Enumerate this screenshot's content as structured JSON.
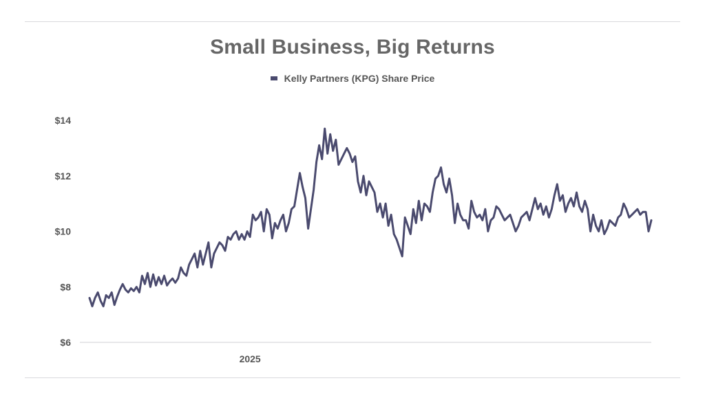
{
  "chart_data": {
    "type": "line",
    "title": "Small Business, Big Returns",
    "legend": {
      "position": "top-center",
      "entries": [
        "Kelly Partners (KPG) Share Price"
      ]
    },
    "xlabel": "",
    "ylabel": "",
    "ylim": [
      6,
      14
    ],
    "y_ticks": [
      14,
      12,
      10,
      8,
      6
    ],
    "y_tick_labels": [
      "$14",
      "$12",
      "$10",
      "$8",
      "$6"
    ],
    "x_tick_labels": [
      {
        "label": "2025",
        "index": 58
      }
    ],
    "grid": "baseline only",
    "series": [
      {
        "name": "Kelly Partners (KPG) Share Price",
        "color": "#4a4a6e",
        "values": [
          7.6,
          7.3,
          7.6,
          7.8,
          7.5,
          7.3,
          7.7,
          7.6,
          7.8,
          7.35,
          7.65,
          7.9,
          8.1,
          7.9,
          7.8,
          7.95,
          7.85,
          8.0,
          7.8,
          8.4,
          8.1,
          8.5,
          8.0,
          8.45,
          8.05,
          8.35,
          8.1,
          8.4,
          8.05,
          8.2,
          8.3,
          8.15,
          8.3,
          8.7,
          8.5,
          8.4,
          8.8,
          9.0,
          9.2,
          8.7,
          9.3,
          8.8,
          9.2,
          9.6,
          8.7,
          9.2,
          9.4,
          9.6,
          9.5,
          9.3,
          9.8,
          9.7,
          9.9,
          10.0,
          9.7,
          9.9,
          9.7,
          10.0,
          9.8,
          10.6,
          10.4,
          10.5,
          10.7,
          10.0,
          10.8,
          10.6,
          9.75,
          10.3,
          10.1,
          10.4,
          10.6,
          10.0,
          10.3,
          10.8,
          10.9,
          11.5,
          12.1,
          11.6,
          11.2,
          10.1,
          10.8,
          11.5,
          12.5,
          13.1,
          12.6,
          13.7,
          12.8,
          13.5,
          12.9,
          13.3,
          12.4,
          12.6,
          12.8,
          13.0,
          12.8,
          12.5,
          12.7,
          11.8,
          11.4,
          12.0,
          11.3,
          11.8,
          11.6,
          11.4,
          10.7,
          11.0,
          10.5,
          11.0,
          10.2,
          10.6,
          9.9,
          9.7,
          9.4,
          9.1,
          10.5,
          10.2,
          9.9,
          10.8,
          10.3,
          11.1,
          10.4,
          11.0,
          10.9,
          10.7,
          11.4,
          11.9,
          12.0,
          12.3,
          11.7,
          11.4,
          11.9,
          11.3,
          10.3,
          11.0,
          10.6,
          10.4,
          10.4,
          10.1,
          11.1,
          10.7,
          10.5,
          10.6,
          10.4,
          10.8,
          10.0,
          10.4,
          10.5,
          10.9,
          10.8,
          10.6,
          10.4,
          10.5,
          10.6,
          10.3,
          10.0,
          10.2,
          10.5,
          10.6,
          10.7,
          10.4,
          10.8,
          11.2,
          10.8,
          11.0,
          10.6,
          10.9,
          10.5,
          10.8,
          11.3,
          11.7,
          11.1,
          11.3,
          10.7,
          11.0,
          11.2,
          10.9,
          11.4,
          10.9,
          10.7,
          11.1,
          10.8,
          10.0,
          10.6,
          10.2,
          10.0,
          10.4,
          9.9,
          10.1,
          10.4,
          10.3,
          10.2,
          10.5,
          10.6,
          11.0,
          10.8,
          10.5,
          10.6,
          10.7,
          10.8,
          10.6,
          10.7,
          10.7,
          10.0,
          10.4
        ]
      }
    ]
  }
}
